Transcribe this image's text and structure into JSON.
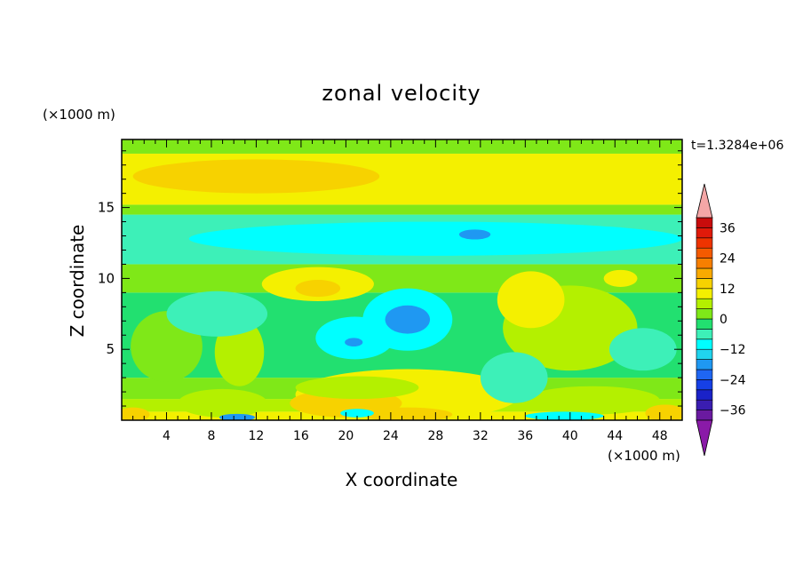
{
  "chart_data": {
    "type": "heatmap",
    "title": "zonal velocity",
    "xlabel": "X coordinate",
    "ylabel": "Z coordinate",
    "x_unit": "(×1000 m)",
    "y_unit": "(×1000 m)",
    "time_label": "t=1.3284e+06",
    "xlim": [
      0,
      50
    ],
    "ylim": [
      0,
      19.8
    ],
    "x_ticks": [
      4,
      8,
      12,
      16,
      20,
      24,
      28,
      32,
      36,
      40,
      44,
      48
    ],
    "y_ticks": [
      5,
      10,
      15
    ],
    "colorbar": {
      "levels": [
        -40,
        -36,
        -32,
        -28,
        -24,
        -20,
        -16,
        -12,
        -8,
        -4,
        0,
        4,
        8,
        12,
        16,
        20,
        24,
        28,
        32,
        36,
        40
      ],
      "tick_values": [
        36,
        24,
        12,
        0,
        -12,
        -24,
        -36
      ],
      "tick_labels": [
        "36",
        "24",
        "12",
        "0",
        "−12",
        "−24",
        "−36"
      ],
      "colors": [
        "#6a1aa0",
        "#3a1db0",
        "#1a22c8",
        "#1640e6",
        "#1f66f2",
        "#1f98f2",
        "#20d4ee",
        "#00ffff",
        "#3df0b8",
        "#22e070",
        "#7fe818",
        "#b4f000",
        "#f4f000",
        "#f7d200",
        "#f9aa00",
        "#f77f00",
        "#f45a00",
        "#ee3300",
        "#e01a0a",
        "#c80c0c"
      ],
      "under_color": "#8a1aa8",
      "over_color": "#f4a6a6",
      "extend": "both"
    },
    "field": {
      "description_units": "zonal velocity",
      "bands": [
        {
          "z": [
            0.0,
            0.6
          ],
          "value": 8
        },
        {
          "z": [
            0.6,
            1.5
          ],
          "value": 4
        },
        {
          "z": [
            1.5,
            3.0
          ],
          "value": 0
        },
        {
          "z": [
            3.0,
            9.0
          ],
          "value": -4
        },
        {
          "z": [
            9.0,
            11.0
          ],
          "value": 0
        },
        {
          "z": [
            11.0,
            14.5
          ],
          "value": -8
        },
        {
          "z": [
            14.5,
            15.2
          ],
          "value": 0
        },
        {
          "z": [
            15.2,
            18.8
          ],
          "value": 8
        },
        {
          "z": [
            18.8,
            19.8
          ],
          "value": 0
        }
      ],
      "blobs": [
        {
          "x": 25.5,
          "z": 1.8,
          "rx": 10.0,
          "rz": 1.8,
          "value": 8
        },
        {
          "x": 20.0,
          "z": 1.2,
          "rx": 5.0,
          "rz": 1.0,
          "value": 12
        },
        {
          "x": 25.5,
          "z": 0.4,
          "rx": 4.0,
          "rz": 0.5,
          "value": 12
        },
        {
          "x": 9.0,
          "z": 1.2,
          "rx": 4.0,
          "rz": 1.0,
          "value": 4
        },
        {
          "x": 42.0,
          "z": 1.4,
          "rx": 6.0,
          "rz": 1.0,
          "value": 4
        },
        {
          "x": 10.3,
          "z": 0.2,
          "rx": 1.6,
          "rz": 0.25,
          "value": -20
        },
        {
          "x": 21.0,
          "z": 0.5,
          "rx": 1.5,
          "rz": 0.3,
          "value": -12
        },
        {
          "x": 39.5,
          "z": 0.3,
          "rx": 3.5,
          "rz": 0.3,
          "value": -12
        },
        {
          "x": 28.0,
          "z": 12.8,
          "rx": 22.0,
          "rz": 1.2,
          "value": -12
        },
        {
          "x": 31.5,
          "z": 13.1,
          "rx": 1.4,
          "rz": 0.35,
          "value": -20
        },
        {
          "x": 25.5,
          "z": 7.1,
          "rx": 4.0,
          "rz": 2.2,
          "value": -12
        },
        {
          "x": 25.5,
          "z": 7.1,
          "rx": 2.0,
          "rz": 1.0,
          "value": -20
        },
        {
          "x": 20.8,
          "z": 5.8,
          "rx": 3.5,
          "rz": 1.5,
          "value": -12
        },
        {
          "x": 20.7,
          "z": 5.5,
          "rx": 0.8,
          "rz": 0.3,
          "value": -20
        },
        {
          "x": 40.0,
          "z": 6.5,
          "rx": 6.0,
          "rz": 3.0,
          "value": 4
        },
        {
          "x": 36.5,
          "z": 8.5,
          "rx": 3.0,
          "rz": 2.0,
          "value": 8
        },
        {
          "x": 17.5,
          "z": 9.6,
          "rx": 5.0,
          "rz": 1.2,
          "value": 8
        },
        {
          "x": 17.5,
          "z": 9.3,
          "rx": 2.0,
          "rz": 0.6,
          "value": 12
        },
        {
          "x": 10.5,
          "z": 4.8,
          "rx": 2.2,
          "rz": 2.4,
          "value": 4
        },
        {
          "x": 4.0,
          "z": 5.2,
          "rx": 3.2,
          "rz": 2.5,
          "value": 0
        },
        {
          "x": 8.5,
          "z": 7.5,
          "rx": 4.5,
          "rz": 1.6,
          "value": -8
        },
        {
          "x": 35.0,
          "z": 3.0,
          "rx": 3.0,
          "rz": 1.8,
          "value": -8
        },
        {
          "x": 46.5,
          "z": 5.0,
          "rx": 3.0,
          "rz": 1.5,
          "value": -8
        },
        {
          "x": 21.0,
          "z": 2.3,
          "rx": 5.5,
          "rz": 0.8,
          "value": 4
        },
        {
          "x": 12.0,
          "z": 17.2,
          "rx": 11.0,
          "rz": 1.2,
          "value": 12
        },
        {
          "x": 40.5,
          "z": 17.3,
          "rx": 10.0,
          "rz": 1.2,
          "value": 8
        },
        {
          "x": 48.5,
          "z": 0.5,
          "rx": 1.8,
          "rz": 0.6,
          "value": 12
        },
        {
          "x": 1.0,
          "z": 0.4,
          "rx": 1.5,
          "rz": 0.5,
          "value": 12
        },
        {
          "x": 44.5,
          "z": 10.0,
          "rx": 1.5,
          "rz": 0.6,
          "value": 8
        }
      ]
    }
  }
}
